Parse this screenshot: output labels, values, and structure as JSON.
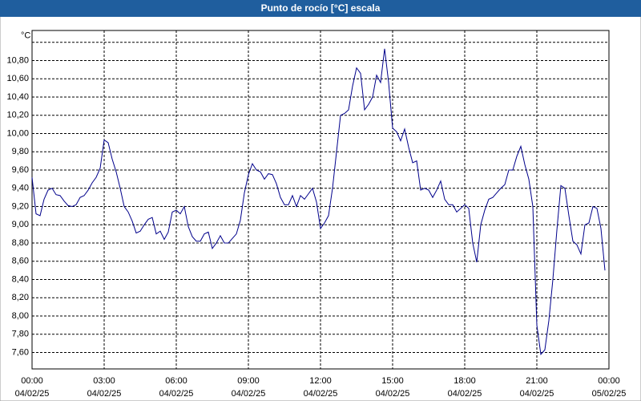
{
  "chart_data": {
    "type": "line",
    "title": "Punto de rocío [°C] escala",
    "color": "#00008b",
    "grid": true,
    "xlim": [
      0,
      1440
    ],
    "ylim": [
      7.42,
      11.13
    ],
    "xticks": [
      {
        "value": 0,
        "label": "00:00",
        "date": "04/02/25"
      },
      {
        "value": 180,
        "label": "03:00",
        "date": "04/02/25"
      },
      {
        "value": 360,
        "label": "06:00",
        "date": "04/02/25"
      },
      {
        "value": 540,
        "label": "09:00",
        "date": "04/02/25"
      },
      {
        "value": 720,
        "label": "12:00",
        "date": "04/02/25"
      },
      {
        "value": 900,
        "label": "15:00",
        "date": "04/02/25"
      },
      {
        "value": 1080,
        "label": "18:00",
        "date": "04/02/25"
      },
      {
        "value": 1260,
        "label": "21:00",
        "date": "04/02/25"
      },
      {
        "value": 1440,
        "label": "00:00",
        "date": "05/02/25"
      }
    ],
    "yticks": [
      {
        "value": 7.6,
        "label": "7,60"
      },
      {
        "value": 7.8,
        "label": "7,80"
      },
      {
        "value": 8.0,
        "label": "8,00"
      },
      {
        "value": 8.2,
        "label": "8,20"
      },
      {
        "value": 8.4,
        "label": "8,40"
      },
      {
        "value": 8.6,
        "label": "8,60"
      },
      {
        "value": 8.8,
        "label": "8,80"
      },
      {
        "value": 9.0,
        "label": "9,00"
      },
      {
        "value": 9.2,
        "label": "9,20"
      },
      {
        "value": 9.4,
        "label": "9,40"
      },
      {
        "value": 9.6,
        "label": "9,60"
      },
      {
        "value": 9.8,
        "label": "9,80"
      },
      {
        "value": 10.0,
        "label": "10,00"
      },
      {
        "value": 10.2,
        "label": "10,20"
      },
      {
        "value": 10.4,
        "label": "10,40"
      },
      {
        "value": 10.6,
        "label": "10,60"
      },
      {
        "value": 10.8,
        "label": "10,80"
      },
      {
        "value": 11.0,
        "label": "°C"
      }
    ],
    "x": [
      0,
      10,
      20,
      30,
      40,
      50,
      60,
      70,
      80,
      90,
      100,
      110,
      120,
      130,
      140,
      150,
      160,
      170,
      180,
      190,
      200,
      210,
      220,
      230,
      240,
      250,
      260,
      270,
      280,
      290,
      300,
      310,
      320,
      330,
      340,
      350,
      360,
      370,
      380,
      390,
      400,
      410,
      420,
      430,
      440,
      450,
      460,
      470,
      480,
      490,
      500,
      510,
      520,
      530,
      540,
      550,
      560,
      570,
      580,
      590,
      600,
      610,
      620,
      630,
      640,
      650,
      660,
      670,
      680,
      690,
      700,
      710,
      720,
      730,
      740,
      750,
      760,
      770,
      780,
      790,
      800,
      810,
      820,
      830,
      840,
      850,
      860,
      870,
      880,
      890,
      900,
      910,
      920,
      930,
      940,
      950,
      960,
      970,
      980,
      990,
      1000,
      1010,
      1020,
      1030,
      1040,
      1050,
      1060,
      1070,
      1080,
      1090,
      1100,
      1110,
      1120,
      1130,
      1140,
      1150,
      1160,
      1170,
      1180,
      1190,
      1200,
      1210,
      1220,
      1230,
      1240,
      1250,
      1260,
      1270,
      1280,
      1290,
      1300,
      1310,
      1320,
      1330,
      1340,
      1350,
      1360,
      1370,
      1380,
      1390,
      1400,
      1410,
      1420,
      1430
    ],
    "values": [
      9.52,
      9.12,
      9.1,
      9.28,
      9.38,
      9.4,
      9.33,
      9.32,
      9.26,
      9.21,
      9.2,
      9.22,
      9.3,
      9.32,
      9.38,
      9.46,
      9.52,
      9.62,
      9.93,
      9.9,
      9.72,
      9.58,
      9.4,
      9.2,
      9.14,
      9.04,
      8.91,
      8.93,
      9.0,
      9.06,
      9.08,
      8.9,
      8.93,
      8.84,
      8.92,
      9.14,
      9.16,
      9.12,
      9.2,
      8.98,
      8.87,
      8.82,
      8.82,
      8.9,
      8.92,
      8.74,
      8.8,
      8.88,
      8.8,
      8.8,
      8.85,
      8.9,
      9.05,
      9.35,
      9.55,
      9.67,
      9.6,
      9.58,
      9.5,
      9.56,
      9.55,
      9.45,
      9.3,
      9.22,
      9.22,
      9.32,
      9.2,
      9.32,
      9.28,
      9.34,
      9.4,
      9.25,
      8.96,
      9.02,
      9.1,
      9.4,
      9.8,
      10.2,
      10.22,
      10.26,
      10.52,
      10.72,
      10.66,
      10.26,
      10.32,
      10.4,
      10.64,
      10.56,
      10.93,
      10.56,
      10.06,
      10.02,
      9.92,
      10.05,
      9.85,
      9.68,
      9.7,
      9.38,
      9.4,
      9.38,
      9.3,
      9.38,
      9.48,
      9.28,
      9.22,
      9.22,
      9.14,
      9.18,
      9.22,
      9.18,
      8.8,
      8.59,
      9.0,
      9.16,
      9.28,
      9.3,
      9.35,
      9.4,
      9.44,
      9.6,
      9.6,
      9.75,
      9.86,
      9.66,
      9.5,
      9.2,
      7.9,
      7.58,
      7.63,
      7.95,
      8.4,
      8.94,
      9.43,
      9.4,
      9.1,
      8.82,
      8.78,
      8.68,
      9.0,
      9.02,
      9.2,
      9.18,
      8.96,
      8.5
    ]
  }
}
